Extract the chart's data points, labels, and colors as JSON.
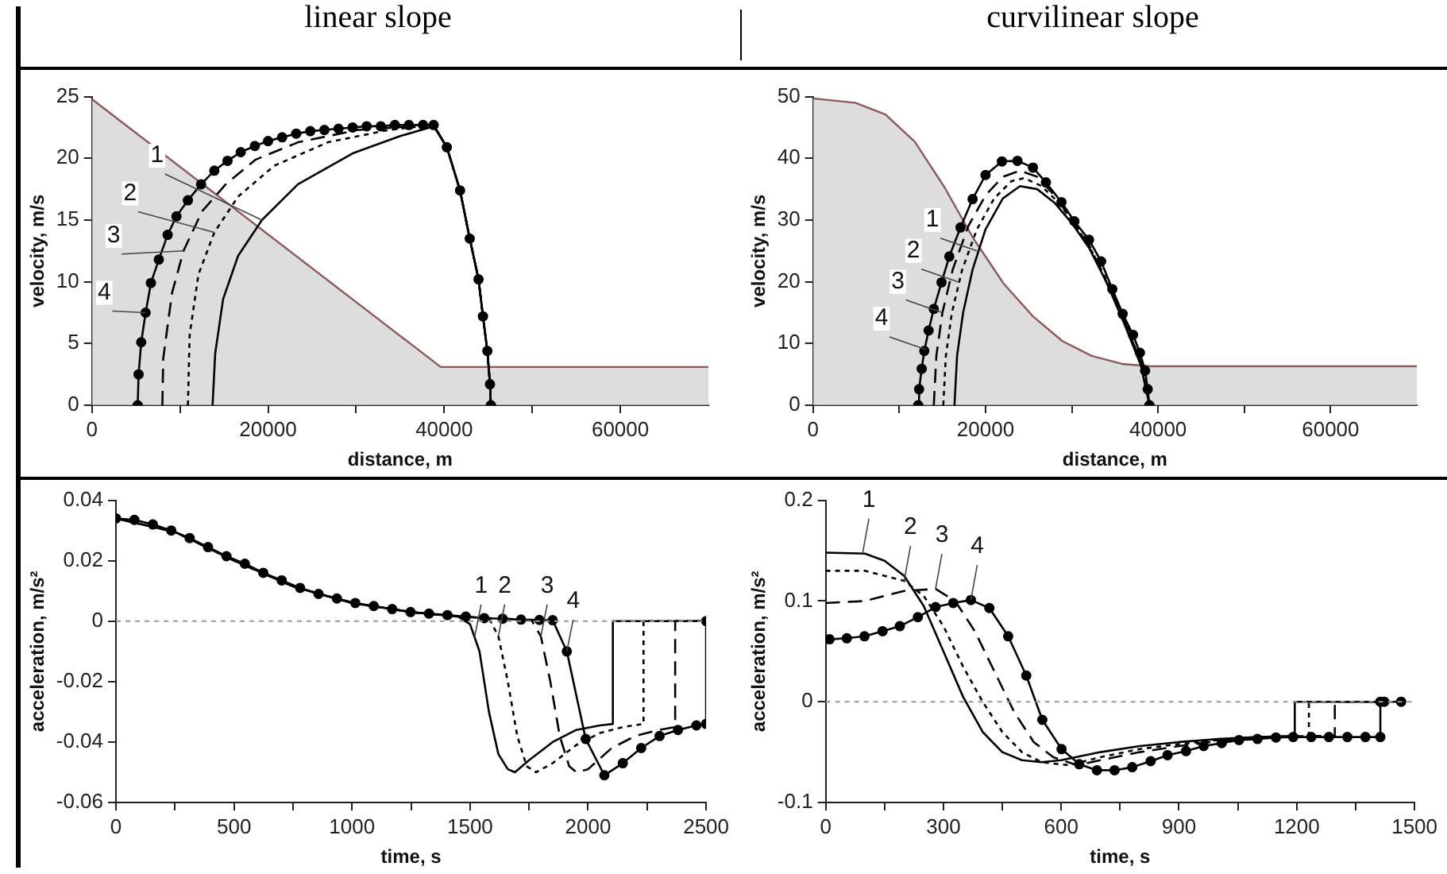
{
  "chart_data": [
    {
      "type": "line",
      "title": "linear slope",
      "xlabel": "distance, m",
      "ylabel": "velocity, m/s",
      "xlim": [
        0,
        70000
      ],
      "ylim": [
        0,
        25
      ],
      "xticks": [
        0,
        {
          "value": 10000,
          "label": null
        },
        20000,
        {
          "value": 30000,
          "label": null
        },
        40000,
        {
          "value": 50000,
          "label": null
        },
        60000
      ],
      "yticks": [
        0,
        5,
        10,
        15,
        20,
        25
      ],
      "grid": false,
      "legend": false,
      "series": [
        {
          "type": "area",
          "color": "#8b5a5a",
          "x": [
            0,
            39600,
            70000
          ],
          "values": [
            24.8,
            3.1,
            3.1
          ]
        },
        {
          "color": "#000000",
          "line_style": "solid",
          "marker": "none",
          "x": [
            13700,
            14000,
            14900,
            16600,
            19300,
            23400,
            29600,
            35000,
            38800,
            40300,
            41800,
            42900,
            43900,
            44400,
            44900,
            45200,
            45300
          ],
          "values": [
            0,
            4.2,
            8.6,
            12.1,
            15,
            17.9,
            20.4,
            21.8,
            22.6,
            20.9,
            17.4,
            13.5,
            10.2,
            7.2,
            4.4,
            1.7,
            0
          ]
        },
        {
          "color": "#000000",
          "line_style": "dotted",
          "marker": "none",
          "x": [
            10900,
            11100,
            12100,
            13900,
            16600,
            20700,
            26800,
            33700,
            38800,
            40300,
            41800,
            42900,
            43900,
            44400,
            44900,
            45200,
            45300
          ],
          "values": [
            0,
            5.7,
            10.6,
            14,
            16.9,
            19.4,
            21.3,
            22.3,
            22.7,
            20.9,
            17.4,
            13.5,
            10.2,
            7.2,
            4.4,
            1.7,
            0
          ]
        },
        {
          "color": "#000000",
          "line_style": "dashed",
          "marker": "none",
          "x": [
            8000,
            8100,
            9100,
            10400,
            12500,
            15200,
            18600,
            23400,
            30200,
            38800,
            40300,
            41800,
            42900,
            43900,
            44400,
            44900,
            45200,
            45300
          ],
          "values": [
            0,
            3.8,
            9.1,
            12.5,
            15.7,
            17.9,
            19.9,
            21.3,
            22.3,
            22.7,
            20.9,
            17.4,
            13.5,
            10.2,
            7.2,
            4.4,
            1.7,
            0
          ]
        },
        {
          "color": "#000000",
          "line_style": "solid",
          "marker": "circle",
          "x": [
            5200,
            5300,
            5600,
            6100,
            6700,
            7600,
            8600,
            9600,
            10900,
            12400,
            13900,
            15400,
            16900,
            18500,
            20000,
            21600,
            23200,
            24800,
            26400,
            28000,
            29600,
            31200,
            32800,
            34400,
            36000,
            37600,
            38800,
            40300,
            41800,
            42900,
            43900,
            44400,
            44900,
            45200,
            45300
          ],
          "values": [
            0,
            2.5,
            5.1,
            7.5,
            9.9,
            11.8,
            13.8,
            15.3,
            16.6,
            17.9,
            19,
            19.8,
            20.5,
            21,
            21.4,
            21.7,
            22,
            22.2,
            22.3,
            22.4,
            22.5,
            22.6,
            22.6,
            22.7,
            22.7,
            22.7,
            22.7,
            20.9,
            17.4,
            13.5,
            10.2,
            7.2,
            4.4,
            1.7,
            0
          ]
        }
      ],
      "annotations": [
        {
          "text": "1",
          "x": 19300,
          "y": 15
        },
        {
          "text": "2",
          "x": 13900,
          "y": 14
        },
        {
          "text": "3",
          "x": 10400,
          "y": 12.5
        },
        {
          "text": "4",
          "x": 6100,
          "y": 7.5
        }
      ]
    },
    {
      "type": "line",
      "title": "curvilinear slope",
      "xlabel": "distance, m",
      "ylabel": "velocity, m/s",
      "xlim": [
        0,
        70000
      ],
      "ylim": [
        0,
        50
      ],
      "xticks": [
        0,
        {
          "value": 10000,
          "label": null
        },
        20000,
        {
          "value": 30000,
          "label": null
        },
        40000,
        {
          "value": 50000,
          "label": null
        },
        60000
      ],
      "yticks": [
        0,
        10,
        20,
        30,
        40,
        50
      ],
      "grid": false,
      "legend": false,
      "series": [
        {
          "type": "area",
          "color": "#8b5a5a",
          "x": [
            0,
            4900,
            8400,
            11800,
            15200,
            18600,
            22100,
            25500,
            28900,
            32300,
            35800,
            39200,
            70000
          ],
          "values": [
            49.7,
            49,
            47.1,
            42.7,
            35.4,
            27,
            19.7,
            14.4,
            10.4,
            8,
            6.7,
            6.3,
            6.3
          ]
        },
        {
          "color": "#000000",
          "line_style": "solid",
          "marker": "none",
          "x": [
            16400,
            16700,
            17400,
            18500,
            20000,
            22000,
            24000,
            26000,
            28000,
            30000,
            32000,
            34000,
            36000,
            38000,
            39000
          ],
          "values": [
            0,
            8,
            15,
            22,
            28.5,
            33.5,
            35.5,
            35,
            32.8,
            29.5,
            25.5,
            20,
            13.5,
            6.5,
            0
          ]
        },
        {
          "color": "#000000",
          "line_style": "dotted",
          "marker": "none",
          "x": [
            15100,
            15400,
            16100,
            17300,
            19000,
            21000,
            23000,
            24500,
            26500,
            28500,
            30500,
            32500,
            34500,
            36500,
            38200,
            39000
          ],
          "values": [
            0,
            8,
            15,
            22,
            28.5,
            33.5,
            36.3,
            36.8,
            35.5,
            32.8,
            29,
            24.5,
            19,
            12.5,
            6,
            0
          ]
        },
        {
          "color": "#000000",
          "line_style": "dashed",
          "marker": "none",
          "x": [
            14000,
            14300,
            15000,
            16200,
            18000,
            20000,
            22000,
            24000,
            26000,
            28000,
            30000,
            32000,
            34000,
            36000,
            38000,
            39000
          ],
          "values": [
            0,
            8,
            15,
            22,
            29,
            34,
            37,
            38,
            37,
            34,
            30,
            26,
            20,
            14,
            7,
            0
          ]
        },
        {
          "color": "#000000",
          "line_style": "solid",
          "marker": "circle",
          "x": [
            12200,
            12300,
            12600,
            12900,
            13400,
            14000,
            14900,
            15800,
            17100,
            18500,
            20000,
            21900,
            23700,
            25500,
            27000,
            28800,
            30300,
            32000,
            33400,
            34700,
            35900,
            37100,
            37900,
            38500,
            38800,
            39000
          ],
          "values": [
            0,
            2.6,
            5.9,
            8.8,
            12.1,
            15.6,
            19.9,
            24.1,
            28.8,
            33.4,
            37.3,
            39.5,
            39.6,
            38.5,
            36.1,
            32.9,
            29.8,
            26.8,
            23.3,
            18.8,
            14.8,
            11.4,
            8.5,
            5.6,
            2.6,
            0
          ]
        }
      ],
      "annotations": [
        {
          "text": "1",
          "x": 19000,
          "y": 25
        },
        {
          "text": "2",
          "x": 16800,
          "y": 20
        },
        {
          "text": "3",
          "x": 15000,
          "y": 15
        },
        {
          "text": "4",
          "x": 13100,
          "y": 9
        }
      ]
    },
    {
      "type": "line",
      "xlabel": "time, s",
      "ylabel": "acceleration, m/s²",
      "xlim": [
        0,
        2500
      ],
      "ylim": [
        -0.06,
        0.04
      ],
      "xticks": [
        0,
        {
          "value": 250,
          "label": null
        },
        500,
        {
          "value": 750,
          "label": null
        },
        1000,
        {
          "value": 1250,
          "label": null
        },
        1500,
        {
          "value": 1750,
          "label": null
        },
        2000,
        {
          "value": 2250,
          "label": null
        },
        2500
      ],
      "yticks": [
        -0.06,
        -0.04,
        -0.02,
        0,
        0.02,
        0.04
      ],
      "grid": false,
      "legend": false,
      "ref_lines": [
        {
          "axis": "y",
          "value": 0,
          "color": "#999999",
          "line_style": "dotted"
        }
      ],
      "series": [
        {
          "color": "#000000",
          "line_style": "solid",
          "marker": "none",
          "x": [
            0,
            250,
            500,
            750,
            1000,
            1250,
            1450,
            1500,
            1540,
            1580,
            1620,
            1660,
            1690,
            1750,
            1850,
            1950,
            2050,
            2105,
            2105,
            2500
          ],
          "values": [
            0.034,
            0.0295,
            0.02,
            0.0115,
            0.006,
            0.003,
            0.0015,
            -0.001,
            -0.01,
            -0.03,
            -0.044,
            -0.049,
            -0.05,
            -0.046,
            -0.04,
            -0.036,
            -0.0345,
            -0.034,
            0,
            0
          ]
        },
        {
          "color": "#000000",
          "line_style": "dotted",
          "marker": "none",
          "x": [
            0,
            250,
            500,
            750,
            1000,
            1250,
            1450,
            1580,
            1620,
            1660,
            1700,
            1740,
            1780,
            1850,
            1950,
            2050,
            2150,
            2235,
            2235,
            2500
          ],
          "values": [
            0.034,
            0.0295,
            0.02,
            0.0115,
            0.006,
            0.003,
            0.0015,
            0.001,
            -0.005,
            -0.02,
            -0.038,
            -0.048,
            -0.05,
            -0.047,
            -0.041,
            -0.037,
            -0.035,
            -0.034,
            0,
            0
          ]
        },
        {
          "color": "#000000",
          "line_style": "dashed",
          "marker": "none",
          "x": [
            0,
            250,
            500,
            750,
            1000,
            1250,
            1450,
            1760,
            1800,
            1840,
            1880,
            1920,
            1950,
            2000,
            2100,
            2200,
            2300,
            2369,
            2369,
            2500
          ],
          "values": [
            0.034,
            0.0295,
            0.02,
            0.0115,
            0.006,
            0.003,
            0.0015,
            0.0004,
            -0.005,
            -0.02,
            -0.038,
            -0.048,
            -0.05,
            -0.049,
            -0.042,
            -0.038,
            -0.036,
            -0.035,
            0,
            0
          ]
        },
        {
          "color": "#000000",
          "line_style": "solid",
          "marker": "circle",
          "x": [
            0,
            78,
            156,
            234,
            312,
            390,
            468,
            546,
            624,
            702,
            780,
            858,
            936,
            1014,
            1092,
            1170,
            1248,
            1326,
            1404,
            1482,
            1560,
            1638,
            1716,
            1794,
            1850,
            1910,
            1990,
            2069,
            2147,
            2225,
            2303,
            2381,
            2459,
            2500,
            2500
          ],
          "values": [
            0.034,
            0.0335,
            0.032,
            0.03,
            0.0275,
            0.0245,
            0.0215,
            0.019,
            0.016,
            0.0135,
            0.011,
            0.009,
            0.0075,
            0.006,
            0.005,
            0.004,
            0.003,
            0.0025,
            0.002,
            0.0015,
            0.001,
            0.0008,
            0.0005,
            0.0004,
            0.0003,
            -0.01,
            -0.039,
            -0.051,
            -0.047,
            -0.042,
            -0.038,
            -0.036,
            -0.0345,
            -0.034,
            0
          ]
        }
      ],
      "annotations": [
        {
          "text": "1",
          "x": 1520,
          "y": -0.005
        },
        {
          "text": "2",
          "x": 1620,
          "y": -0.005
        },
        {
          "text": "3",
          "x": 1800,
          "y": -0.005
        },
        {
          "text": "4",
          "x": 1910,
          "y": -0.01
        }
      ]
    },
    {
      "type": "line",
      "xlabel": "time, s",
      "ylabel": "acceleration, m/s²",
      "xlim": [
        0,
        1500
      ],
      "ylim": [
        -0.1,
        0.2
      ],
      "xticks": [
        0,
        {
          "value": 150,
          "label": null
        },
        300,
        {
          "value": 450,
          "label": null
        },
        600,
        {
          "value": 750,
          "label": null
        },
        900,
        {
          "value": 1050,
          "label": null
        },
        1200,
        {
          "value": 1350,
          "label": null
        },
        1500
      ],
      "yticks": [
        -0.1,
        0,
        0.1,
        0.2
      ],
      "grid": false,
      "legend": false,
      "ref_lines": [
        {
          "axis": "y",
          "value": 0,
          "color": "#999999",
          "line_style": "dotted"
        }
      ],
      "series": [
        {
          "color": "#000000",
          "line_style": "solid",
          "marker": "none",
          "x": [
            0,
            100,
            150,
            200,
            250,
            300,
            350,
            400,
            450,
            500,
            550,
            600,
            700,
            800,
            900,
            1000,
            1100,
            1195,
            1195,
            1413
          ],
          "values": [
            0.148,
            0.147,
            0.14,
            0.125,
            0.095,
            0.05,
            0.005,
            -0.03,
            -0.05,
            -0.058,
            -0.06,
            -0.058,
            -0.05,
            -0.044,
            -0.04,
            -0.037,
            -0.035,
            -0.034,
            0,
            0
          ]
        },
        {
          "color": "#000000",
          "line_style": "dotted",
          "marker": "none",
          "x": [
            0,
            100,
            200,
            250,
            300,
            350,
            400,
            450,
            500,
            550,
            620,
            700,
            800,
            900,
            1000,
            1100,
            1231,
            1231,
            1413
          ],
          "values": [
            0.13,
            0.13,
            0.12,
            0.105,
            0.075,
            0.035,
            0,
            -0.03,
            -0.05,
            -0.06,
            -0.063,
            -0.055,
            -0.047,
            -0.042,
            -0.038,
            -0.035,
            -0.034,
            0,
            0
          ]
        },
        {
          "color": "#000000",
          "line_style": "dashed",
          "marker": "none",
          "x": [
            0,
            100,
            200,
            280,
            330,
            380,
            430,
            480,
            530,
            580,
            640,
            700,
            800,
            900,
            1000,
            1100,
            1200,
            1297,
            1297,
            1413
          ],
          "values": [
            0.098,
            0.1,
            0.11,
            0.112,
            0.1,
            0.07,
            0.03,
            -0.01,
            -0.04,
            -0.055,
            -0.063,
            -0.058,
            -0.05,
            -0.044,
            -0.039,
            -0.036,
            -0.034,
            -0.034,
            0,
            0
          ]
        },
        {
          "color": "#000000",
          "line_style": "solid",
          "marker": "circle",
          "x": [
            10,
            54,
            99,
            145,
            189,
            235,
            280,
            325,
            370,
            417,
            465,
            511,
            552,
            601,
            646,
            691,
            736,
            781,
            828,
            871,
            918,
            963,
            1009,
            1053,
            1100,
            1147,
            1191,
            1237,
            1282,
            1329,
            1375,
            1413,
            1413,
            1423,
            1466
          ],
          "values": [
            0.062,
            0.063,
            0.065,
            0.07,
            0.075,
            0.084,
            0.094,
            0.098,
            0.101,
            0.093,
            0.065,
            0.026,
            -0.018,
            -0.047,
            -0.062,
            -0.068,
            -0.068,
            -0.065,
            -0.059,
            -0.053,
            -0.049,
            -0.044,
            -0.041,
            -0.038,
            -0.037,
            -0.0355,
            -0.035,
            -0.035,
            -0.035,
            -0.035,
            -0.035,
            -0.035,
            0,
            0,
            0
          ]
        }
      ],
      "annotations": [
        {
          "text": "1",
          "x": 94,
          "y": 0.147
        },
        {
          "text": "2",
          "x": 200,
          "y": 0.12
        },
        {
          "text": "3",
          "x": 280,
          "y": 0.112
        },
        {
          "text": "4",
          "x": 370,
          "y": 0.101
        }
      ]
    }
  ]
}
